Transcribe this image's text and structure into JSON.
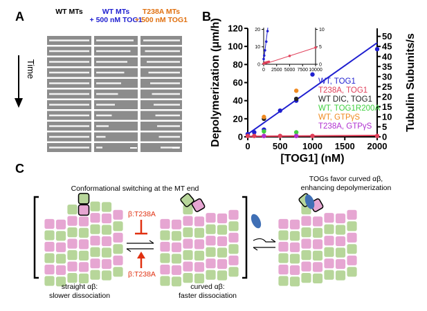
{
  "panel_a": {
    "label": "A",
    "columns": [
      {
        "lines": [
          "WT MTs"
        ],
        "color": "#000000"
      },
      {
        "lines": [
          "WT MTs",
          "+ 500 nM TOG1"
        ],
        "color": "#1f1fd0"
      },
      {
        "lines": [
          "T238A MTs",
          "+ 500 nM TOG1"
        ],
        "color": "#e07010"
      }
    ],
    "time_label": "Time"
  },
  "panel_b": {
    "label": "B"
  },
  "chart_data": [
    {
      "type": "scatter",
      "xlabel": "[TOG1] (nM)",
      "ylabel": "Depolymerization (μm/h)",
      "y2label": "Tubulin Subunits/s",
      "xlim": [
        0,
        2000
      ],
      "xticks": [
        0,
        500,
        1000,
        1500,
        2000
      ],
      "ylim": [
        0,
        120
      ],
      "yticks": [
        0,
        20,
        40,
        60,
        80,
        100,
        120
      ],
      "y2lim": [
        0,
        54
      ],
      "y2ticks": [
        0,
        5,
        10,
        15,
        20,
        25,
        30,
        35,
        40,
        45,
        50
      ],
      "legend": "lower right",
      "series": [
        {
          "name": "WT,  TOG1",
          "color": "#1f1fd0",
          "x": [
            0,
            100,
            250,
            500,
            750,
            1000,
            2000
          ],
          "values": [
            3,
            5,
            8,
            29,
            40,
            69,
            97
          ]
        },
        {
          "name": "T238A,  TOG1",
          "color": "#e0405a",
          "x": [
            0,
            100,
            250,
            500,
            750,
            1000,
            2000
          ],
          "values": [
            1,
            1,
            1,
            1,
            1,
            1,
            1
          ]
        },
        {
          "name": "WT  DIC,  TOG1",
          "color": "#222222",
          "x": [
            250,
            750
          ],
          "values": [
            20,
            42
          ]
        },
        {
          "name": "WT,  TOG1R200A",
          "color": "#40d040",
          "x": [
            250,
            750
          ],
          "values": [
            6,
            5
          ]
        },
        {
          "name": "WT,  GTPγS",
          "color": "#f08a20",
          "x": [
            250,
            750
          ],
          "values": [
            22,
            51
          ]
        },
        {
          "name": "T238A,  GTPγS",
          "color": "#b030d0",
          "x": [
            250,
            750
          ],
          "values": [
            1,
            1
          ]
        }
      ],
      "fits": [
        {
          "color": "#1f1fd0",
          "x": [
            0,
            2000
          ],
          "values": [
            3,
            104
          ]
        },
        {
          "color": "#e0405a",
          "x": [
            0,
            2000
          ],
          "values": [
            0.5,
            1.5
          ]
        }
      ]
    },
    {
      "type": "scatter",
      "xlim": [
        0,
        10000
      ],
      "xticks": [
        0,
        2500,
        5000,
        7500,
        10000
      ],
      "ylim": [
        0,
        21
      ],
      "yticks": [
        0,
        10,
        20
      ],
      "y2lim": [
        0,
        10.5
      ],
      "y2ticks": [
        0,
        5,
        10
      ],
      "series": [
        {
          "color": "#1f1fd0",
          "x": [
            0,
            100,
            250,
            500,
            750
          ],
          "values": [
            3,
            5,
            8,
            13,
            19
          ]
        },
        {
          "color": "#e0405a",
          "axis": "y2",
          "x": [
            0,
            250,
            500,
            750,
            1000,
            5000,
            10000
          ],
          "values": [
            0.2,
            0.4,
            0.5,
            0.6,
            0.7,
            2.4,
            4.8
          ]
        }
      ],
      "fits": [
        {
          "color": "#1f1fd0",
          "x": [
            0,
            800
          ],
          "values": [
            2,
            21
          ]
        },
        {
          "color": "#e0405a",
          "axis": "y2",
          "x": [
            0,
            10000
          ],
          "values": [
            0,
            4.8
          ]
        }
      ]
    }
  ],
  "panel_c": {
    "label": "C",
    "title": "Conformational switching at the MT end",
    "right_title": [
      "TOGs favor curved αβ,",
      "enhancing depolymerization"
    ],
    "mutation_top": "β:T238A",
    "mutation_bottom": "β:T238A",
    "left_caption": [
      "straight αβ:",
      "slower dissociation"
    ],
    "middle_caption": [
      "curved αβ:",
      "faster dissociation"
    ]
  }
}
